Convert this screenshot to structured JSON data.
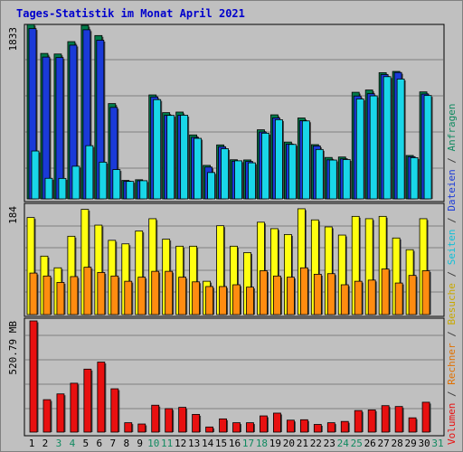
{
  "title": "Tages-Statistik im Monat April 2021",
  "colors": {
    "background": "#c0c0c0",
    "title": "#0000cc",
    "anfragen": "#007a4a",
    "dateien": "#1a3ad8",
    "seiten": "#19d6e8",
    "besuche": "#ffff10",
    "rechner": "#ff8c10",
    "volumen": "#e81010",
    "weekend_day": "#108a60",
    "weekday_day": "#000000"
  },
  "right_legend": [
    {
      "text": "Volumen",
      "color": "#e81010"
    },
    {
      "text": " / ",
      "color": "#404040"
    },
    {
      "text": "Rechner",
      "color": "#e07000"
    },
    {
      "text": " / ",
      "color": "#404040"
    },
    {
      "text": "Besuche",
      "color": "#c8a800"
    },
    {
      "text": " / ",
      "color": "#404040"
    },
    {
      "text": "Seiten",
      "color": "#10c0d8"
    },
    {
      "text": " / ",
      "color": "#404040"
    },
    {
      "text": "Dateien",
      "color": "#1a3ad8"
    },
    {
      "text": " / ",
      "color": "#404040"
    },
    {
      "text": "Anfragen",
      "color": "#108a60"
    }
  ],
  "chart_data": [
    {
      "type": "bar",
      "panel": "top",
      "ylabel": "1833",
      "ylim": [
        0,
        1833
      ],
      "categories": [
        "1",
        "2",
        "3",
        "4",
        "5",
        "6",
        "7",
        "8",
        "9",
        "10",
        "11",
        "12",
        "13",
        "14",
        "15",
        "16",
        "17",
        "18",
        "19",
        "20",
        "21",
        "22",
        "23",
        "24",
        "25",
        "26",
        "27",
        "28",
        "29",
        "30",
        "31"
      ],
      "series": [
        {
          "name": "Anfragen",
          "values": [
            1833,
            1528,
            1522,
            1652,
            1823,
            1716,
            1001,
            194,
            201,
            1092,
            906,
            912,
            672,
            352,
            567,
            411,
            409,
            726,
            883,
            597,
            850,
            570,
            435,
            440,
            1120,
            1144,
            1326,
            1339,
            456,
            1124,
            0
          ]
        },
        {
          "name": "Dateien",
          "values": [
            1789,
            1490,
            1485,
            1615,
            1777,
            1667,
            961,
            186,
            190,
            1071,
            877,
            879,
            646,
            334,
            548,
            396,
            393,
            702,
            851,
            575,
            821,
            556,
            410,
            420,
            1081,
            1105,
            1306,
            1328,
            443,
            1101,
            0
          ]
        },
        {
          "name": "Seiten",
          "values": [
            503,
            216,
            215,
            343,
            559,
            386,
            308,
            184,
            191,
            1043,
            877,
            879,
            636,
            277,
            527,
            400,
            379,
            690,
            832,
            572,
            819,
            519,
            408,
            413,
            1050,
            1082,
            1284,
            1259,
            433,
            1086,
            0
          ]
        }
      ]
    },
    {
      "type": "bar",
      "panel": "middle",
      "ylabel": "184",
      "ylim": [
        0,
        184
      ],
      "categories": [
        "1",
        "2",
        "3",
        "4",
        "5",
        "6",
        "7",
        "8",
        "9",
        "10",
        "11",
        "12",
        "13",
        "14",
        "15",
        "16",
        "17",
        "18",
        "19",
        "20",
        "21",
        "22",
        "23",
        "24",
        "25",
        "26",
        "27",
        "28",
        "29",
        "30",
        "31"
      ],
      "series": [
        {
          "name": "Besuche",
          "values": [
            166,
            100,
            80,
            134,
            180,
            153,
            127,
            121,
            143,
            164,
            129,
            117,
            117,
            57,
            152,
            117,
            106,
            158,
            147,
            137,
            181,
            162,
            150,
            136,
            168,
            164,
            168,
            131,
            111,
            164,
            0
          ]
        },
        {
          "name": "Rechner",
          "values": [
            71,
            66,
            55,
            65,
            81,
            72,
            66,
            57,
            64,
            74,
            74,
            64,
            56,
            48,
            48,
            51,
            47,
            75,
            66,
            64,
            80,
            69,
            70,
            51,
            57,
            59,
            78,
            54,
            67,
            75,
            0
          ]
        }
      ]
    },
    {
      "type": "bar",
      "panel": "bottom",
      "ylabel": "520.79 MB",
      "ylim": [
        0,
        520.79
      ],
      "categories": [
        "1",
        "2",
        "3",
        "4",
        "5",
        "6",
        "7",
        "8",
        "9",
        "10",
        "11",
        "12",
        "13",
        "14",
        "15",
        "16",
        "17",
        "18",
        "19",
        "20",
        "21",
        "22",
        "23",
        "24",
        "25",
        "26",
        "27",
        "28",
        "29",
        "30",
        "31"
      ],
      "series": [
        {
          "name": "Volumen",
          "values": [
            520.79,
            152,
            179,
            229,
            295,
            328,
            203,
            44,
            38,
            126,
            110,
            116,
            83,
            24,
            62,
            44,
            44,
            76,
            89,
            56,
            58,
            36,
            44,
            50,
            101,
            104,
            124,
            120,
            67,
            140,
            0
          ]
        }
      ]
    }
  ]
}
